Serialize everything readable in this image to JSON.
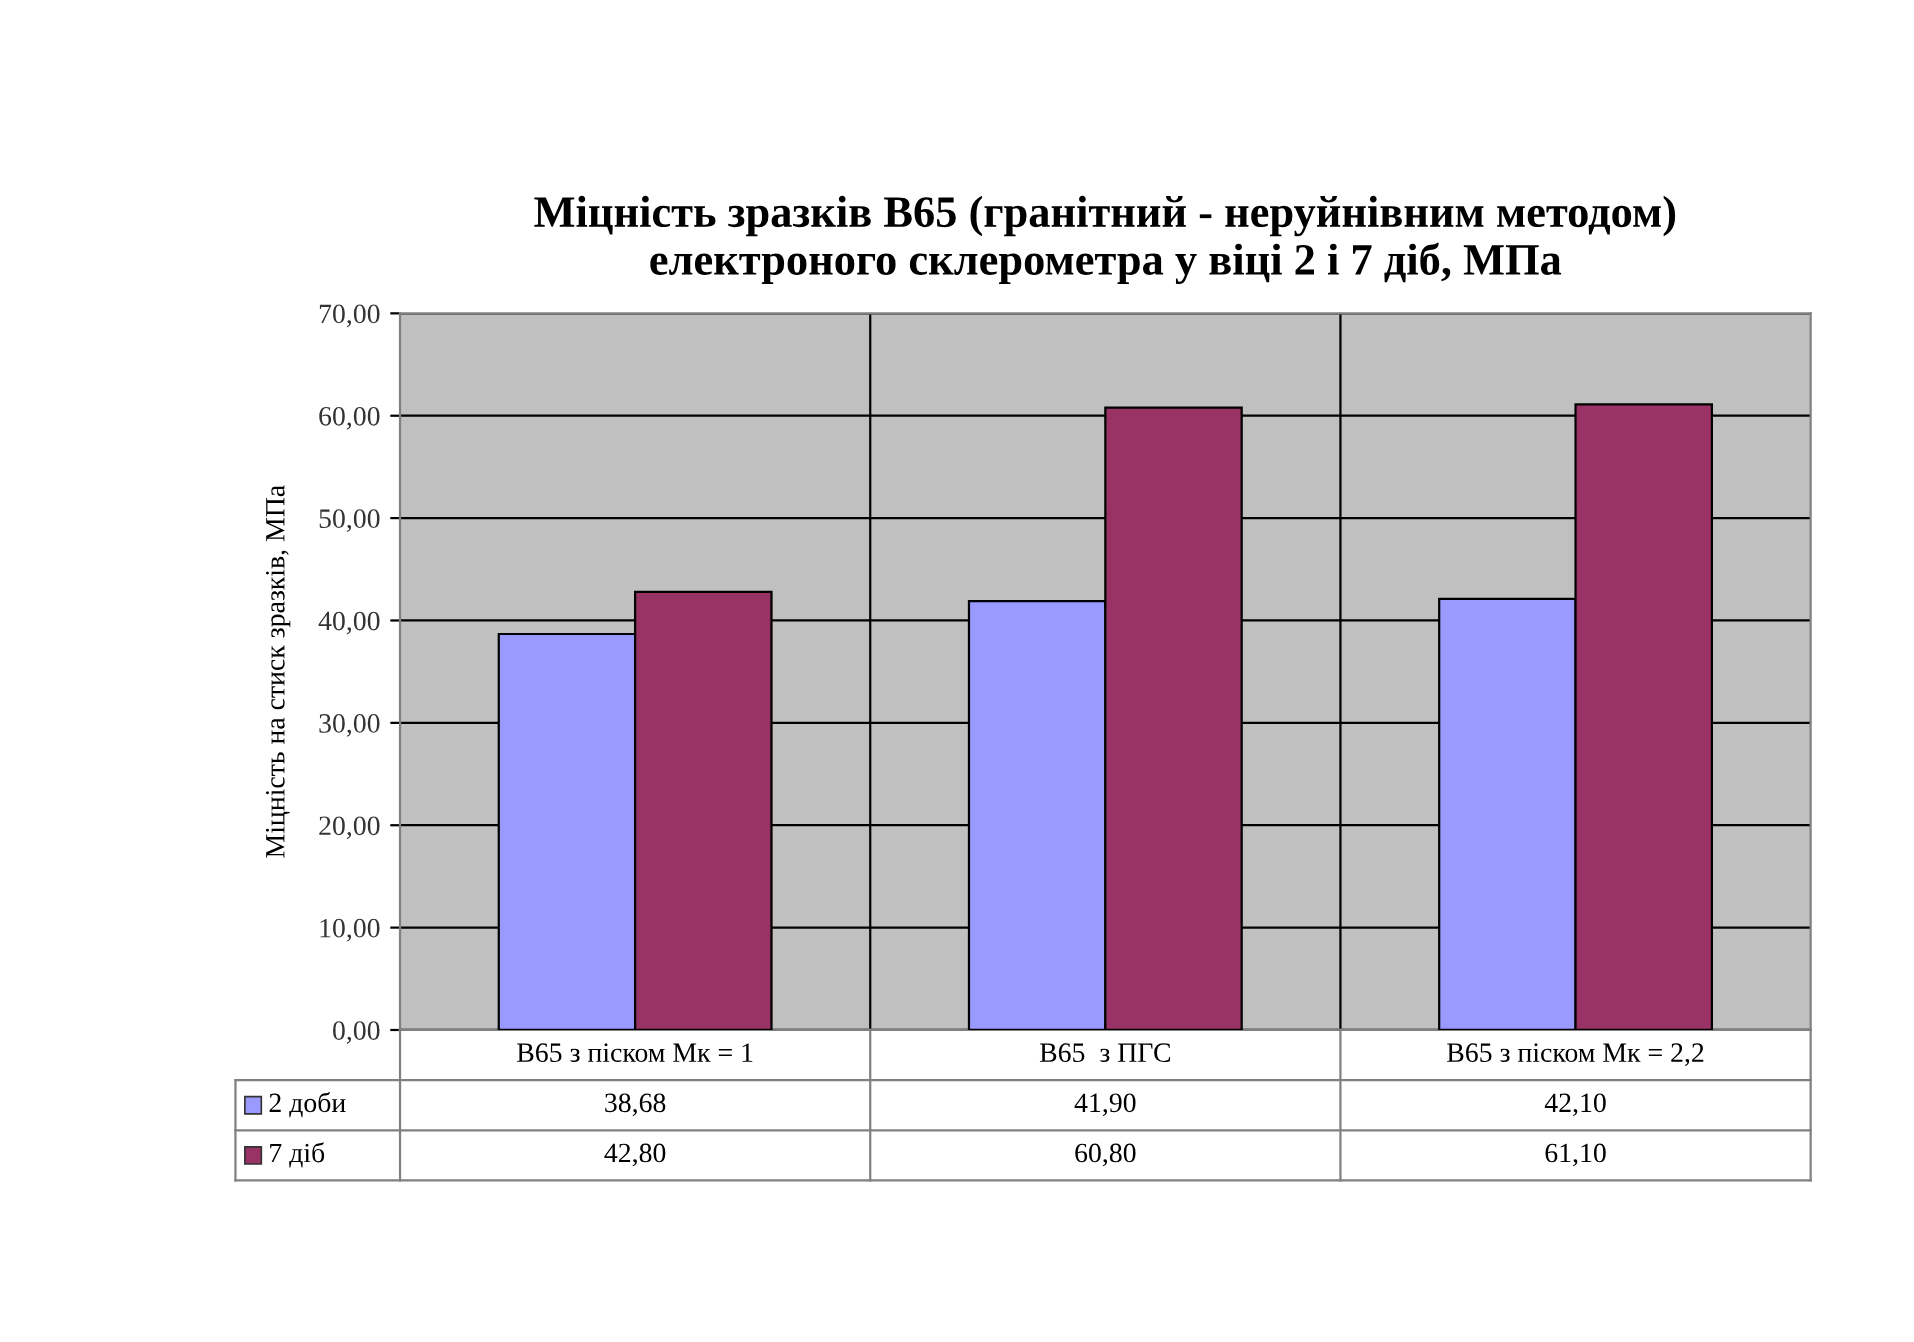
{
  "chart_data": {
    "type": "bar",
    "title": "Міцність зразків В65 (гранітний - неруйнівним методом)\nелектроного склерометра у віці 2 і 7 діб, МПа",
    "ylabel": "Міцність на стиск зразків, МПа",
    "categories": [
      "В65 з піском Мк = 1",
      "В65  з ПГС",
      "В65 з піском Мк = 2,2"
    ],
    "series": [
      {
        "name": "2 доби",
        "color": "#9999ff",
        "values": [
          38.68,
          41.9,
          42.1
        ],
        "value_labels": [
          "38,68",
          "41,90",
          "42,10"
        ]
      },
      {
        "name": "7 діб",
        "color": "#993366",
        "values": [
          42.8,
          60.8,
          61.1
        ],
        "value_labels": [
          "42,80",
          "60,80",
          "61,10"
        ]
      }
    ],
    "ylim": [
      0,
      70
    ],
    "yticks": [
      {
        "value": 0,
        "label": "0,00"
      },
      {
        "value": 10,
        "label": "10,00"
      },
      {
        "value": 20,
        "label": "20,00"
      },
      {
        "value": 30,
        "label": "30,00"
      },
      {
        "value": 40,
        "label": "40,00"
      },
      {
        "value": 50,
        "label": "50,00"
      },
      {
        "value": 60,
        "label": "60,00"
      },
      {
        "value": 70,
        "label": "70,00"
      }
    ],
    "grid": true,
    "legend": "bottom"
  }
}
